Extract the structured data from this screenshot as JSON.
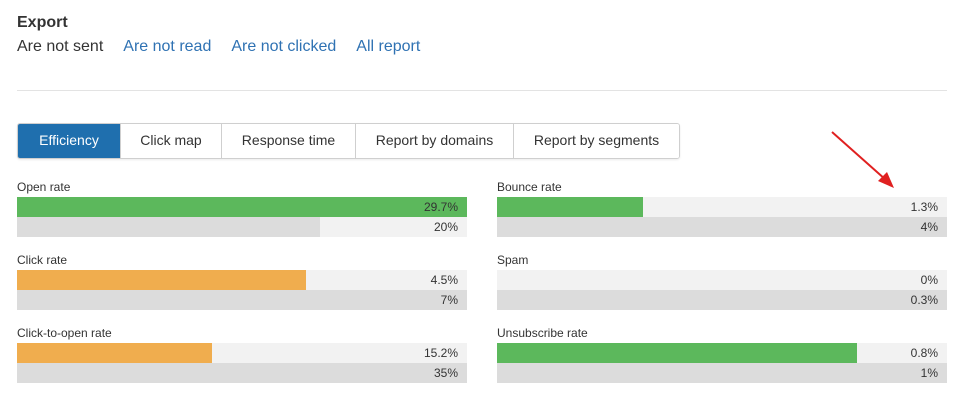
{
  "export": {
    "title": "Export",
    "links": [
      {
        "label": "Are not sent",
        "is_link": false
      },
      {
        "label": "Are not read",
        "is_link": true
      },
      {
        "label": "Are not clicked",
        "is_link": true
      },
      {
        "label": "All report",
        "is_link": true
      }
    ]
  },
  "tabs": [
    {
      "label": "Efficiency",
      "active": true
    },
    {
      "label": "Click map",
      "active": false
    },
    {
      "label": "Response time",
      "active": false
    },
    {
      "label": "Report by domains",
      "active": false
    },
    {
      "label": "Report by segments",
      "active": false
    }
  ],
  "colors": {
    "accent": "#1f6fae",
    "link": "#2f72b3",
    "good": "#5cb85c",
    "warning": "#f0ad4e",
    "average_bar": "#dcdcdc",
    "annotation_arrow": "#e02020"
  },
  "metrics": {
    "open_rate": {
      "label": "Open rate",
      "value": "29.7%",
      "avg": "20%",
      "value_fraction": 1.0,
      "avg_fraction": 0.673,
      "color": "green"
    },
    "click_rate": {
      "label": "Click rate",
      "value": "4.5%",
      "avg": "7%",
      "value_fraction": 0.642,
      "avg_fraction": 1.0,
      "color": "orange"
    },
    "click_to_open": {
      "label": "Click-to-open rate",
      "value": "15.2%",
      "avg": "35%",
      "value_fraction": 0.434,
      "avg_fraction": 1.0,
      "color": "orange"
    },
    "bounce_rate": {
      "label": "Bounce rate",
      "value": "1.3%",
      "avg": "4%",
      "value_fraction": 0.325,
      "avg_fraction": 1.0,
      "color": "green"
    },
    "spam": {
      "label": "Spam",
      "value": "0%",
      "avg": "0.3%",
      "value_fraction": 0.0,
      "avg_fraction": 1.0,
      "color": "green"
    },
    "unsubscribe": {
      "label": "Unsubscribe rate",
      "value": "0.8%",
      "avg": "1%",
      "value_fraction": 0.8,
      "avg_fraction": 1.0,
      "color": "green"
    }
  },
  "annotation": {
    "icon": "red-arrow-icon"
  }
}
